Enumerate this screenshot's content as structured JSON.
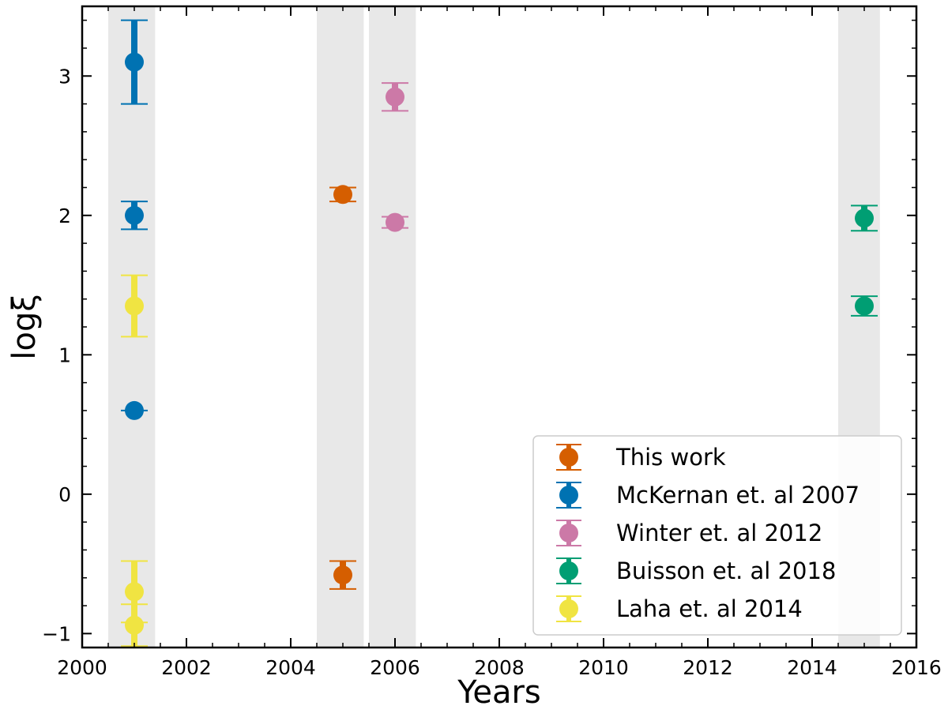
{
  "chart_data": {
    "type": "scatter",
    "xlabel": "Years",
    "ylabel": "logξ",
    "xlim": [
      2000,
      2016
    ],
    "ylim": [
      -1.1,
      3.5
    ],
    "x_ticks": [
      2000,
      2002,
      2004,
      2006,
      2008,
      2010,
      2012,
      2014,
      2016
    ],
    "y_ticks": [
      -1,
      0,
      1,
      2,
      3
    ],
    "x_tick_labels": [
      "2000",
      "2002",
      "2004",
      "2006",
      "2008",
      "2010",
      "2012",
      "2014",
      "2016"
    ],
    "y_tick_labels": [
      "−1",
      "0",
      "1",
      "2",
      "3"
    ],
    "grid": false,
    "legend_position": "lower-right",
    "shaded_regions": [
      [
        2000.5,
        2001.4
      ],
      [
        2004.5,
        2005.4
      ],
      [
        2005.5,
        2006.4
      ],
      [
        2014.5,
        2015.3
      ]
    ],
    "series": [
      {
        "name": "This work",
        "color": "#d55e00",
        "points": [
          {
            "x": 2005,
            "y": 2.15,
            "err": 0.05
          },
          {
            "x": 2005,
            "y": -0.58,
            "err": 0.1
          }
        ]
      },
      {
        "name": "McKernan et. al 2007",
        "color": "#0072b2",
        "points": [
          {
            "x": 2001,
            "y": 3.1,
            "err": 0.3
          },
          {
            "x": 2001,
            "y": 2.0,
            "err": 0.1
          },
          {
            "x": 2001,
            "y": 0.6,
            "err": 0.0
          }
        ]
      },
      {
        "name": "Winter et. al 2012",
        "color": "#cc79a7",
        "points": [
          {
            "x": 2006,
            "y": 2.85,
            "err": 0.1
          },
          {
            "x": 2006,
            "y": 1.95,
            "err": 0.04
          }
        ]
      },
      {
        "name": "Buisson et. al 2018",
        "color": "#009e73",
        "points": [
          {
            "x": 2015,
            "y": 1.98,
            "err": 0.09
          },
          {
            "x": 2015,
            "y": 1.35,
            "err": 0.07
          }
        ]
      },
      {
        "name": "Laha et. al 2014",
        "color": "#f0e442",
        "points": [
          {
            "x": 2001,
            "y": 1.35,
            "err": 0.22
          },
          {
            "x": 2001,
            "y": -0.7,
            "err": 0.22
          },
          {
            "x": 2001,
            "y": -0.94,
            "err": 0.15
          }
        ]
      }
    ]
  }
}
